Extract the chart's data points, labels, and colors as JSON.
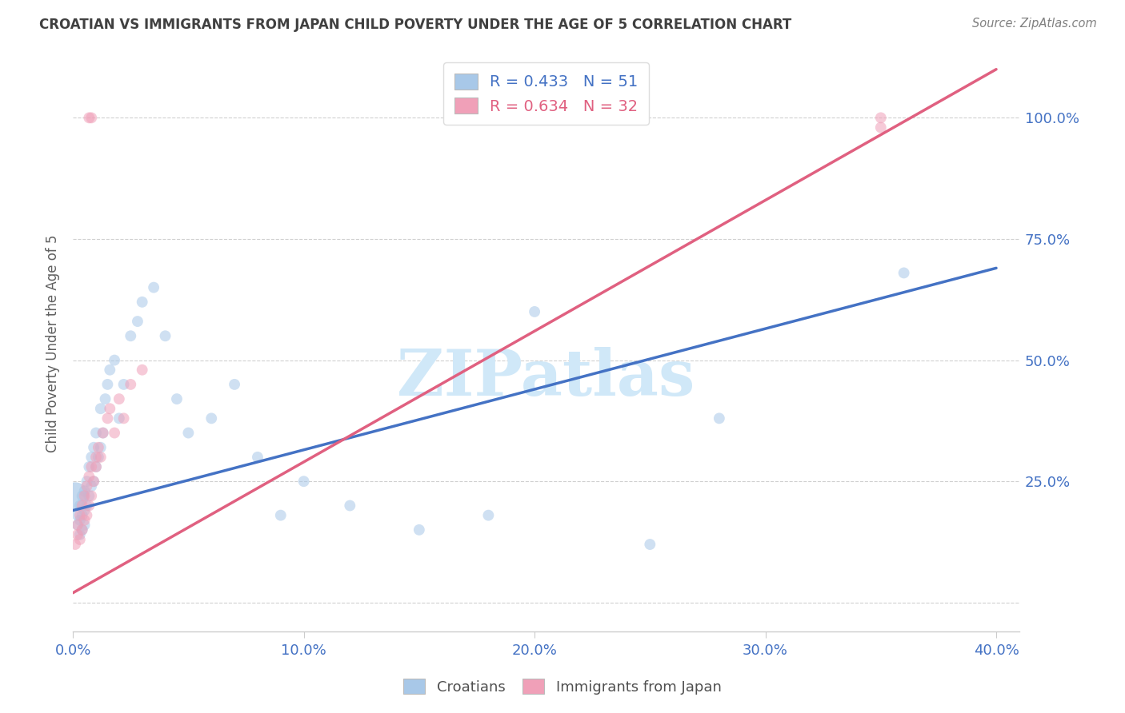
{
  "title": "CROATIAN VS IMMIGRANTS FROM JAPAN CHILD POVERTY UNDER THE AGE OF 5 CORRELATION CHART",
  "source": "Source: ZipAtlas.com",
  "ylabel": "Child Poverty Under the Age of 5",
  "croatians_R": 0.433,
  "croatians_N": 51,
  "japan_R": 0.634,
  "japan_N": 32,
  "blue_color": "#a8c8e8",
  "pink_color": "#f0a0b8",
  "blue_line_color": "#4472c4",
  "pink_line_color": "#e06080",
  "watermark_text": "ZIPatlas",
  "watermark_color": "#d0e8f8",
  "background_color": "#ffffff",
  "title_color": "#404040",
  "source_color": "#808080",
  "axis_color": "#4472c4",
  "ylabel_color": "#606060",
  "grid_color": "#d0d0d0",
  "x_lim": [
    0.0,
    0.41
  ],
  "y_lim": [
    -0.06,
    1.13
  ],
  "x_ticks": [
    0.0,
    0.1,
    0.2,
    0.3,
    0.4
  ],
  "x_tick_labels": [
    "0.0%",
    "10.0%",
    "20.0%",
    "30.0%",
    "40.0%"
  ],
  "y_ticks": [
    0.0,
    0.25,
    0.5,
    0.75,
    1.0
  ],
  "y_tick_labels": [
    "",
    "25.0%",
    "50.0%",
    "75.0%",
    "100.0%"
  ],
  "cro_x": [
    0.001,
    0.002,
    0.002,
    0.003,
    0.003,
    0.003,
    0.004,
    0.004,
    0.004,
    0.005,
    0.005,
    0.005,
    0.006,
    0.006,
    0.007,
    0.007,
    0.008,
    0.008,
    0.009,
    0.009,
    0.01,
    0.01,
    0.011,
    0.012,
    0.012,
    0.013,
    0.014,
    0.015,
    0.016,
    0.018,
    0.02,
    0.022,
    0.025,
    0.028,
    0.03,
    0.035,
    0.04,
    0.045,
    0.05,
    0.06,
    0.07,
    0.08,
    0.09,
    0.1,
    0.12,
    0.15,
    0.18,
    0.2,
    0.25,
    0.28,
    0.36
  ],
  "cro_y": [
    0.15,
    0.16,
    0.18,
    0.14,
    0.17,
    0.2,
    0.15,
    0.18,
    0.22,
    0.16,
    0.19,
    0.23,
    0.2,
    0.25,
    0.22,
    0.28,
    0.24,
    0.3,
    0.25,
    0.32,
    0.28,
    0.35,
    0.3,
    0.32,
    0.4,
    0.35,
    0.42,
    0.45,
    0.48,
    0.5,
    0.38,
    0.45,
    0.55,
    0.58,
    0.62,
    0.65,
    0.55,
    0.42,
    0.35,
    0.38,
    0.45,
    0.3,
    0.18,
    0.25,
    0.2,
    0.15,
    0.18,
    0.6,
    0.12,
    0.38,
    0.68
  ],
  "jpn_x": [
    0.001,
    0.002,
    0.002,
    0.003,
    0.003,
    0.004,
    0.004,
    0.005,
    0.005,
    0.006,
    0.006,
    0.007,
    0.007,
    0.008,
    0.008,
    0.009,
    0.01,
    0.01,
    0.011,
    0.012,
    0.013,
    0.015,
    0.016,
    0.018,
    0.02,
    0.022,
    0.025,
    0.03,
    0.007,
    0.008,
    0.35,
    0.35
  ],
  "jpn_y": [
    0.12,
    0.14,
    0.16,
    0.13,
    0.18,
    0.15,
    0.2,
    0.17,
    0.22,
    0.18,
    0.24,
    0.2,
    0.26,
    0.22,
    0.28,
    0.25,
    0.3,
    0.28,
    0.32,
    0.3,
    0.35,
    0.38,
    0.4,
    0.35,
    0.42,
    0.38,
    0.45,
    0.48,
    1.0,
    1.0,
    1.0,
    0.98
  ]
}
